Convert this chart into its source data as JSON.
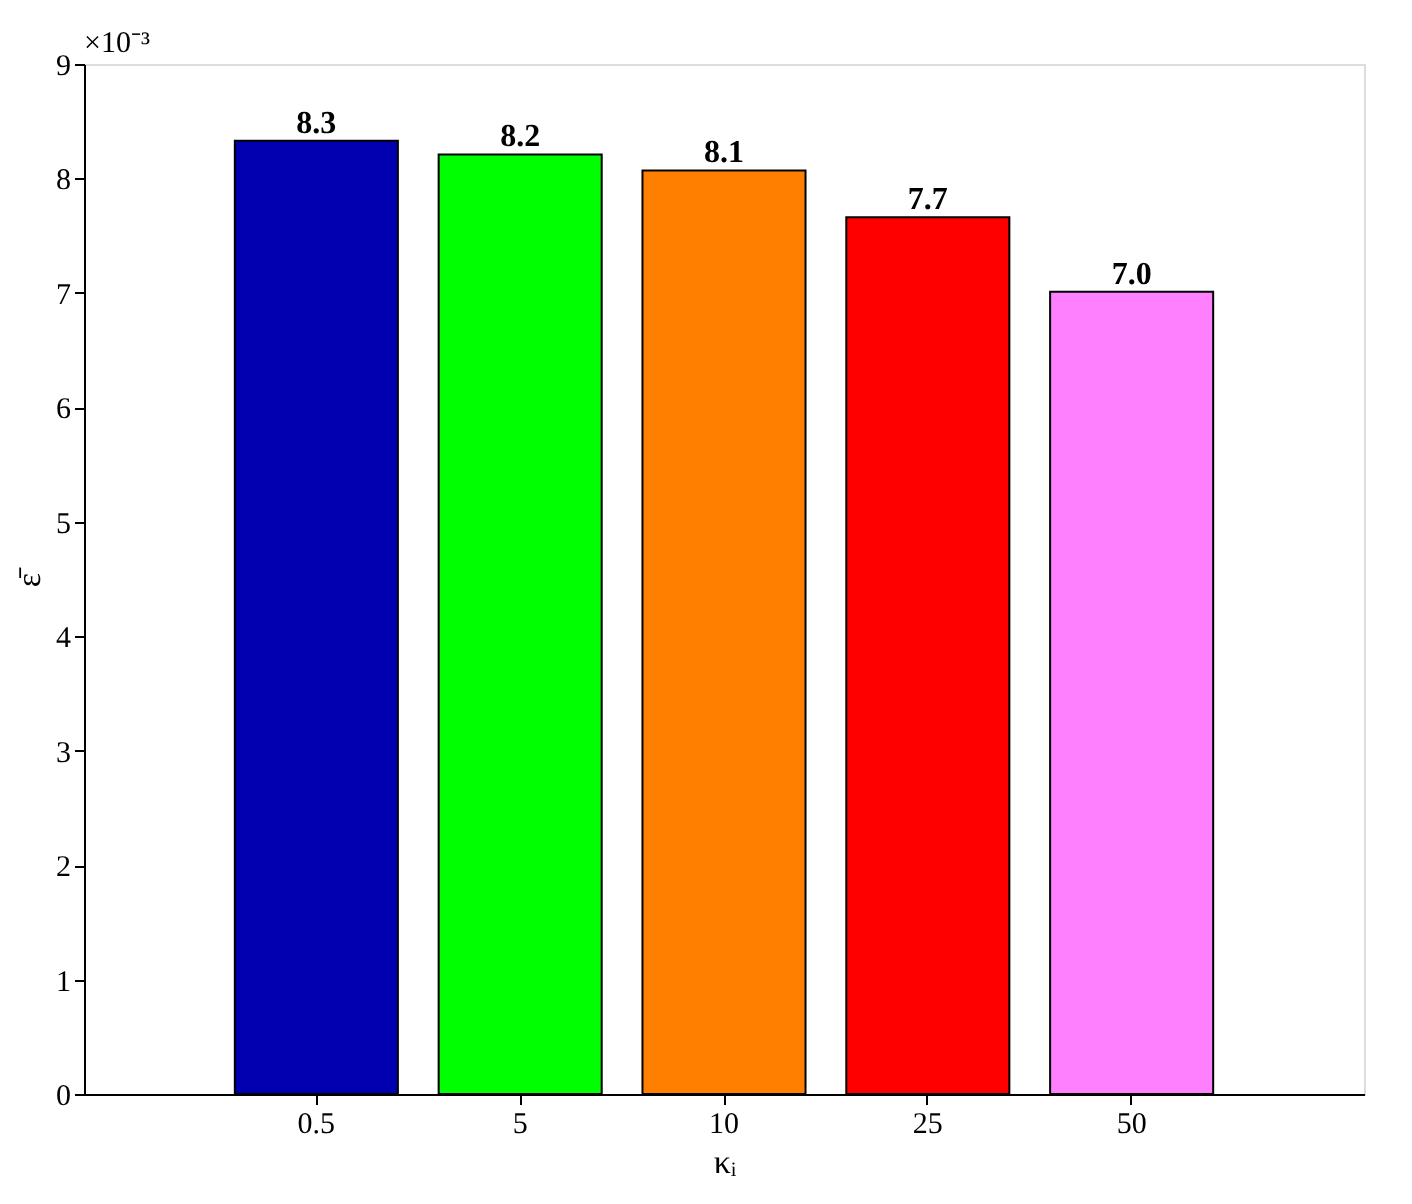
{
  "chart_data": {
    "type": "bar",
    "xlabel": "κᵢ",
    "ylabel": "ε̄",
    "categories": [
      "0.5",
      "5",
      "10",
      "25",
      "50"
    ],
    "values": [
      8.33,
      8.21,
      8.07,
      7.66,
      7.01
    ],
    "colors": [
      "#0000b0",
      "#00ff00",
      "#ff8000",
      "#ff0000",
      "#ff80ff"
    ],
    "value_labels": [
      "8.3",
      "8.2",
      "8.1",
      "7.7",
      "7.0"
    ],
    "ylim": [
      0,
      9
    ],
    "yticks": [
      0,
      1,
      2,
      3,
      4,
      5,
      6,
      7,
      8,
      9
    ],
    "annotations": [
      "×10⁻³"
    ],
    "grid": false
  }
}
